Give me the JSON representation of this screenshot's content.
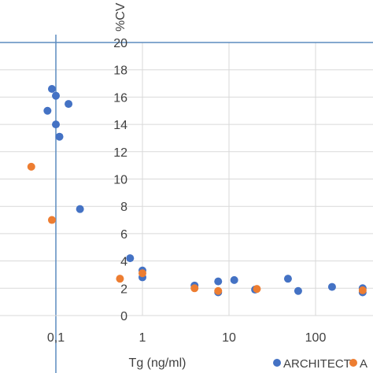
{
  "chart_data": {
    "type": "scatter",
    "x_scale": "log",
    "xlabel": "Tg (ng/ml)",
    "ylabel": "%CV",
    "ylim": [
      0,
      20
    ],
    "y_ticks": [
      "0",
      "2",
      "4",
      "6",
      "8",
      "10",
      "12",
      "14",
      "16",
      "18",
      "20"
    ],
    "x_ticks": [
      {
        "value": 0.1,
        "label": "0,1"
      },
      {
        "value": 1,
        "label": "1"
      },
      {
        "value": 10,
        "label": "10"
      },
      {
        "value": 100,
        "label": "100"
      }
    ],
    "grid": true,
    "legend_position": "bottom-right",
    "series": [
      {
        "name": "ARCHITECT",
        "color": "#4472C4",
        "points": [
          {
            "x": 0.09,
            "y": 16.6
          },
          {
            "x": 0.1,
            "y": 16.1
          },
          {
            "x": 0.08,
            "y": 15
          },
          {
            "x": 0.14,
            "y": 15.5
          },
          {
            "x": 0.1,
            "y": 14
          },
          {
            "x": 0.11,
            "y": 13.1
          },
          {
            "x": 0.19,
            "y": 7.8
          },
          {
            "x": 0.72,
            "y": 4.2
          },
          {
            "x": 1.0,
            "y": 3.3
          },
          {
            "x": 1.0,
            "y": 2.8
          },
          {
            "x": 4,
            "y": 2.2
          },
          {
            "x": 7.5,
            "y": 2.5
          },
          {
            "x": 7.5,
            "y": 1.7
          },
          {
            "x": 11.5,
            "y": 2.6
          },
          {
            "x": 20,
            "y": 1.9
          },
          {
            "x": 48,
            "y": 2.7
          },
          {
            "x": 63,
            "y": 1.8
          },
          {
            "x": 155,
            "y": 2.1
          },
          {
            "x": 350,
            "y": 2.0
          },
          {
            "x": 350,
            "y": 1.7
          }
        ]
      },
      {
        "name": "A",
        "color": "#ED7D31",
        "points": [
          {
            "x": 0.052,
            "y": 10.9
          },
          {
            "x": 0.09,
            "y": 7.0
          },
          {
            "x": 0.55,
            "y": 2.7
          },
          {
            "x": 1.0,
            "y": 3.1
          },
          {
            "x": 4,
            "y": 2.0
          },
          {
            "x": 7.5,
            "y": 1.8
          },
          {
            "x": 21,
            "y": 1.95
          },
          {
            "x": 350,
            "y": 1.85
          }
        ]
      }
    ]
  }
}
